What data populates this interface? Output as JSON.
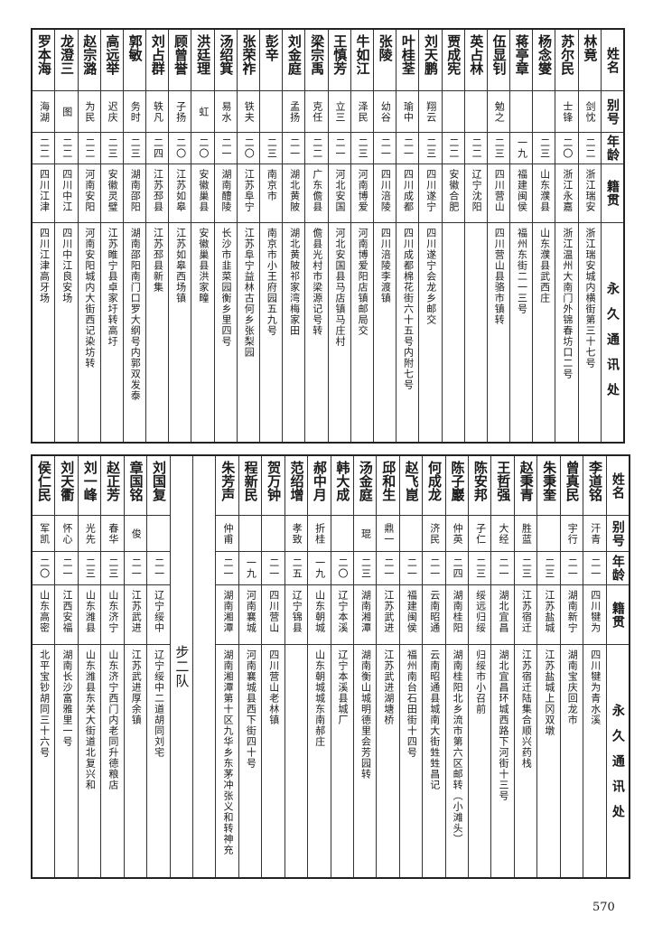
{
  "headers": {
    "name": "姓名",
    "alias": "别号",
    "age": "年龄",
    "origin": "籍贯",
    "address": "永久通讯处"
  },
  "top_rows": [
    {
      "name": "林竟",
      "alias": "剑忱",
      "age": "二二",
      "origin": "浙江瑞安",
      "address": "浙江瑞安城内横街第三十七号"
    },
    {
      "name": "苏尔民",
      "alias": "士锋",
      "age": "二〇",
      "origin": "浙江永嘉",
      "address": "浙江温州大南门外锦春坊口二号"
    },
    {
      "name": "杨念燮",
      "alias": "",
      "age": "二三",
      "origin": "山东濮县",
      "address": "山东濮县武西庄"
    },
    {
      "name": "蒋亭章",
      "alias": "",
      "age": "一九",
      "origin": "福建闽侯",
      "address": "福州东街二一三号"
    },
    {
      "name": "伍显钊",
      "alias": "勉之",
      "age": "二三",
      "origin": "四川营山",
      "address": "四川营山县骆市镇转"
    },
    {
      "name": "英占林",
      "alias": "",
      "age": "二二",
      "origin": "辽宁沈阳",
      "address": ""
    },
    {
      "name": "贾成宪",
      "alias": "",
      "age": "二二",
      "origin": "安徽合肥",
      "address": ""
    },
    {
      "name": "刘天鹏",
      "alias": "翔云",
      "age": "二三",
      "origin": "四川遂宁",
      "address": "四川遂宁会龙乡邮交"
    },
    {
      "name": "叶桂荃",
      "alias": "瑜中",
      "age": "二一",
      "origin": "四川成都",
      "address": "四川成都棉花街六十五号内附七号"
    },
    {
      "name": "张陵",
      "alias": "幼谷",
      "age": "二一",
      "origin": "四川涪陵",
      "address": "四川涪陵李渡镇"
    },
    {
      "name": "牛如江",
      "alias": "泽民",
      "age": "二三",
      "origin": "河南博爱",
      "address": "河南博爱阳店镇邮局交"
    },
    {
      "name": "王慎芳",
      "alias": "立三",
      "age": "二一",
      "origin": "河北安国",
      "address": "河北安国县马店镇马庄村"
    },
    {
      "name": "梁宗禹",
      "alias": "克任",
      "age": "二二",
      "origin": "广东儋县",
      "address": "儋县光村市梁源记号转"
    },
    {
      "name": "刘金庭",
      "alias": "孟扬",
      "age": "二一",
      "origin": "湖北黄陂",
      "address": "湖北黄陂祁家湾梅家田"
    },
    {
      "name": "彭辛",
      "alias": "",
      "age": "二三",
      "origin": "南京市",
      "address": "南京市小王府园五九号"
    },
    {
      "name": "张荣祚",
      "alias": "铁夫",
      "age": "二〇",
      "origin": "江苏阜宁",
      "address": "江苏阜宁益林古何乡张梨园"
    },
    {
      "name": "汤绍箕",
      "alias": "易水",
      "age": "二一",
      "origin": "湖南醴陵",
      "address": "长沙市韭菜园衡乡里四号"
    },
    {
      "name": "洪廷理",
      "alias": "虹",
      "age": "二〇",
      "origin": "安徽巢县",
      "address": "安徽巢县洪家疃"
    },
    {
      "name": "顾曾誉",
      "alias": "子扬",
      "age": "二〇",
      "origin": "江苏如皋",
      "address": "江苏如皋西场镇"
    },
    {
      "name": "刘占群",
      "alias": "轶凡",
      "age": "二四",
      "origin": "江苏邳县",
      "address": "江苏邳县新集"
    },
    {
      "name": "郭敏",
      "alias": "务时",
      "age": "二三",
      "origin": "湖南邵阳",
      "address": "湖南邵阳南门口罗大纲号内郭双发泰"
    },
    {
      "name": "高远举",
      "alias": "迟庆",
      "age": "二三",
      "origin": "安徽灵璧",
      "address": "江苏睢宁县卓家圩转高圩"
    },
    {
      "name": "赵宗潞",
      "alias": "为民",
      "age": "二二",
      "origin": "河南安阳",
      "address": "河南安阳城内大街西记染坊转"
    },
    {
      "name": "龙澄三",
      "alias": "图",
      "age": "二二",
      "origin": "四川中江",
      "address": "四川中江良安场"
    },
    {
      "name": "罗本海",
      "alias": "海湖",
      "age": "二二",
      "origin": "四川江津",
      "address": "四川江津高牙场"
    }
  ],
  "bottom_rows_right": [
    {
      "name": "李道铭",
      "alias": "汗青",
      "age": "二一",
      "origin": "四川犍为",
      "address": "四川犍为青水溪"
    },
    {
      "name": "曾真民",
      "alias": "宇行",
      "age": "二一",
      "origin": "湖南新宁",
      "address": "湖南宝庆回龙市"
    },
    {
      "name": "朱秉奎",
      "alias": "",
      "age": "二三",
      "origin": "江苏盐城",
      "address": "江苏盐城上冈双墩"
    },
    {
      "name": "赵秉青",
      "alias": "胜蓝",
      "age": "二三",
      "origin": "江苏宿迁",
      "address": "江苏宿迁陆集合顺兴药栈"
    },
    {
      "name": "王哲强",
      "alias": "大经",
      "age": "二一",
      "origin": "湖北宜昌",
      "address": "湖北宜昌环城西路下河街十三号"
    },
    {
      "name": "陈安邦",
      "alias": "子仁",
      "age": "二三",
      "origin": "绥远归绥",
      "address": "归绥市小召前"
    },
    {
      "name": "陈子巖",
      "alias": "仲英",
      "age": "二四",
      "origin": "湖南桂阳",
      "address": "湖南桂阳北乡流市第六区邮转（小滩头）"
    },
    {
      "name": "何成龙",
      "alias": "济民",
      "age": "二一",
      "origin": "云南昭通",
      "address": "云南昭通县城南大街甡甡昌记"
    },
    {
      "name": "赵飞崑",
      "alias": "",
      "age": "二一",
      "origin": "福建闽侯",
      "address": "福州南台石田街十四号"
    },
    {
      "name": "邱和生",
      "alias": "鼎一",
      "age": "二一",
      "origin": "江苏武进",
      "address": "江苏武进湖塘桥"
    },
    {
      "name": "汤金庭",
      "alias": "琨",
      "age": "二三",
      "origin": "湖南湘潭",
      "address": "湖南衡山城明德里会芳园转"
    },
    {
      "name": "韩大成",
      "alias": "",
      "age": "二〇",
      "origin": "辽宁本溪",
      "address": "辽宁本溪县城厂"
    },
    {
      "name": "郝中月",
      "alias": "折桂",
      "age": "一九",
      "origin": "山东朝城",
      "address": "山东朝城城东南郝庄"
    },
    {
      "name": "范绍增",
      "alias": "孝致",
      "age": "二五",
      "origin": "辽宁锦县",
      "address": ""
    },
    {
      "name": "贺万钟",
      "alias": "",
      "age": "二一",
      "origin": "四川营山",
      "address": "四川营山老林镇"
    },
    {
      "name": "程新民",
      "alias": "",
      "age": "一九",
      "origin": "河南襄城",
      "address": "河南襄城县西下街四十号"
    },
    {
      "name": "朱芳声",
      "alias": "仲甫",
      "age": "二一",
      "origin": "湖南湘潭",
      "address": "湖南湘潭第十区九华乡东茅冲张义和转神充"
    }
  ],
  "section_label": "步二队",
  "bottom_rows_left": [
    {
      "name": "刘国复",
      "alias": "",
      "age": "二一",
      "origin": "辽宁绥中",
      "address": "辽宁绥中二道胡同刘宅"
    },
    {
      "name": "章国铭",
      "alias": "俊",
      "age": "二一",
      "origin": "江苏武进",
      "address": "江苏武进厚余镇"
    },
    {
      "name": "赵正芳",
      "alias": "春华",
      "age": "二三",
      "origin": "山东济宁",
      "address": "山东济宁西门内老同升德粮店"
    },
    {
      "name": "刘一峰",
      "alias": "光先",
      "age": "二三",
      "origin": "山东潍县",
      "address": "山东潍县东关大街道北复兴和"
    },
    {
      "name": "刘天衢",
      "alias": "怀心",
      "age": "二一",
      "origin": "江西安福",
      "address": "湖南长沙富雅里一号"
    },
    {
      "name": "侯仁民",
      "alias": "军凯",
      "age": "二〇",
      "origin": "山东高密",
      "address": "北平宝钞胡同三十六号"
    }
  ],
  "page_number": "570"
}
